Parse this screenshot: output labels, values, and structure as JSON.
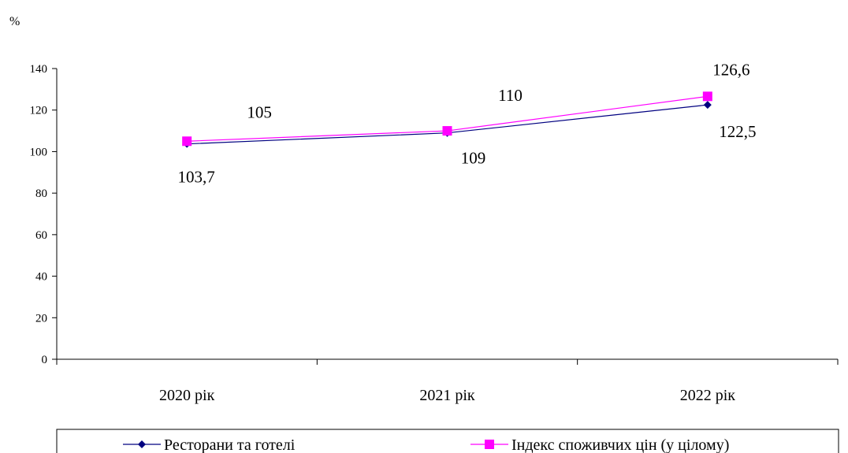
{
  "chart_data": {
    "type": "line",
    "unit_label": "%",
    "categories": [
      "2020 рік",
      "2021 рік",
      "2022 рік"
    ],
    "ylim": [
      0,
      140
    ],
    "yticks": [
      0,
      20,
      40,
      60,
      80,
      100,
      120,
      140
    ],
    "grid": false,
    "legend_position": "bottom",
    "series": [
      {
        "name": "Ресторани та готелі",
        "values": [
          103.7,
          109,
          122.5
        ],
        "labels": [
          "103,7",
          "109",
          "122,5"
        ],
        "color": "#000080",
        "marker": "diamond"
      },
      {
        "name": "Індекс споживчих цін (у цілому)",
        "values": [
          105,
          110,
          126.6
        ],
        "labels": [
          "105",
          "110",
          "126,6"
        ],
        "color": "#ff00ff",
        "marker": "square"
      }
    ]
  }
}
